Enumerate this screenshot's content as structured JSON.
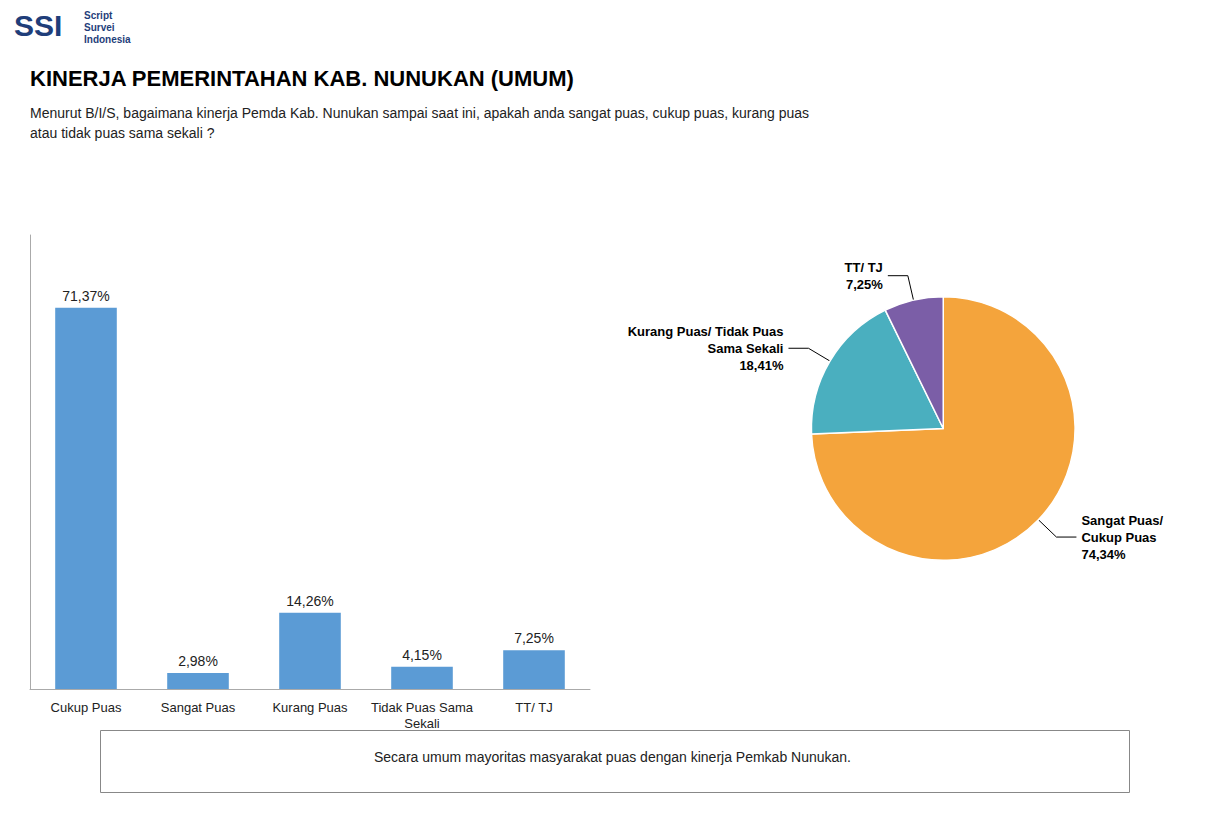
{
  "chart_data": [
    {
      "type": "bar",
      "title": "KINERJA PEMERINTAHAN KAB. NUNUKAN (UMUM)",
      "subtitle": "Menurut B/I/S, bagaimana kinerja Pemda Kab. Nunukan sampai saat ini, apakah anda sangat puas, cukup puas, kurang puas\natau tidak puas sama sekali ?",
      "annotations": [
        "SSI",
        "Script",
        "Survei",
        "Indonesia",
        "Secara umum mayoritas masyarakat puas dengan kinerja Pemkab Nunukan."
      ],
      "categories": [
        "Cukup Puas",
        "Sangat Puas",
        "Kurang Puas",
        "Tidak Puas Sama\nSekali",
        "TT/ TJ"
      ],
      "values": [
        71.37,
        2.98,
        14.26,
        4.15,
        7.25
      ],
      "value_labels": [
        "71,37%",
        "2,98%",
        "14,26%",
        "4,15%",
        "7,25%"
      ],
      "color": "#5B9BD5",
      "ylim": [
        0,
        85
      ],
      "data_labels": true,
      "tick_labels": "x",
      "grid": false
    },
    {
      "type": "pie",
      "categories": [
        "Sangat Puas/\nCukup Puas",
        "Kurang Puas/ Tidak Puas\nSama Sekali",
        "TT/ TJ"
      ],
      "values": [
        74.34,
        18.41,
        7.25
      ],
      "value_labels": [
        "74,34%",
        "18,41%",
        "7,25%"
      ],
      "colors": [
        "#F4A43C",
        "#4AAFBF",
        "#7B5EA7"
      ],
      "data_labels": true
    }
  ]
}
